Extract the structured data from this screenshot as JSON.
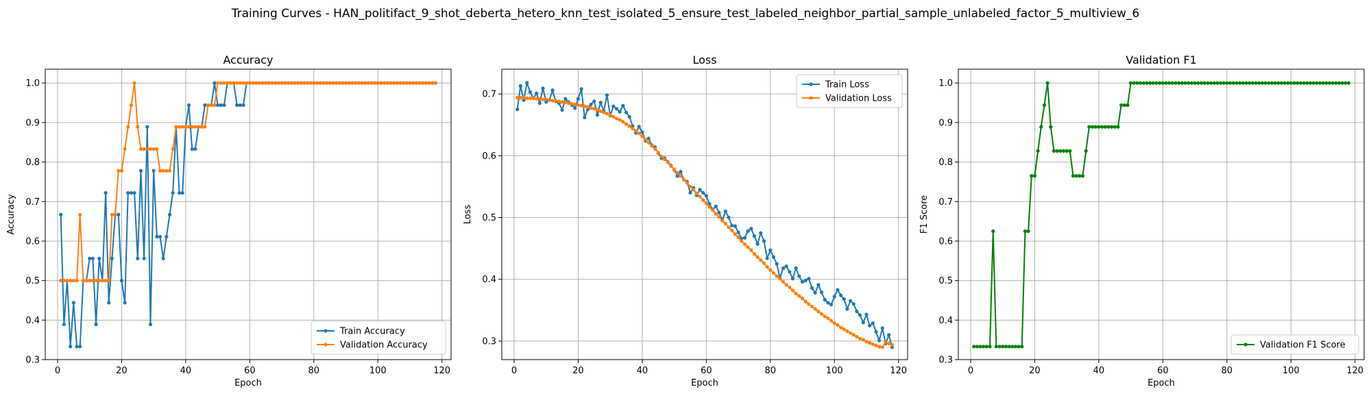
{
  "figure": {
    "suptitle": "Training Curves - HAN_politifact_9_shot_deberta_hetero_knn_test_isolated_5_ensure_test_labeled_neighbor_partial_sample_unlabeled_factor_5_multiview_6"
  },
  "colors": {
    "blue": "#1f77b4",
    "orange": "#ff7f0e",
    "green": "#008000",
    "grid": "#b0b0b0"
  },
  "chart_data": [
    {
      "type": "line",
      "title": "Accuracy",
      "xlabel": "Epoch",
      "ylabel": "Accuracy",
      "xlim": [
        -3.85,
        122.85
      ],
      "ylim": [
        0.3,
        1.035
      ],
      "xticks": [
        0,
        20,
        40,
        60,
        80,
        100,
        120
      ],
      "yticks": [
        0.3,
        0.4,
        0.5,
        0.6,
        0.7,
        0.8,
        0.9,
        1.0
      ],
      "ytick_labels": [
        "0.3",
        "0.4",
        "0.5",
        "0.6",
        "0.7",
        "0.8",
        "0.9",
        "1.0"
      ],
      "grid": true,
      "legend_position": "lower-right",
      "series": [
        {
          "name": "Train Accuracy",
          "color": "#1f77b4",
          "x_start": 1,
          "values": [
            0.667,
            0.389,
            0.5,
            0.333,
            0.444,
            0.333,
            0.333,
            0.5,
            0.5,
            0.556,
            0.556,
            0.389,
            0.556,
            0.5,
            0.722,
            0.444,
            0.556,
            0.667,
            0.667,
            0.5,
            0.444,
            0.722,
            0.722,
            0.722,
            0.556,
            0.778,
            0.556,
            0.889,
            0.389,
            0.778,
            0.611,
            0.611,
            0.556,
            0.611,
            0.667,
            0.722,
            0.889,
            0.722,
            0.722,
            0.889,
            0.944,
            0.833,
            0.833,
            0.889,
            0.889,
            0.944,
            0.944,
            0.944,
            1.0,
            0.944,
            0.944,
            0.944,
            1.0,
            1.0,
            1.0,
            0.944,
            0.944,
            0.944,
            1.0,
            1.0,
            1.0,
            1.0,
            1.0,
            1.0,
            1.0,
            1.0,
            1.0,
            1.0,
            1.0,
            1.0,
            1.0,
            1.0,
            1.0,
            1.0,
            1.0,
            1.0,
            1.0,
            1.0,
            1.0,
            1.0,
            1.0,
            1.0,
            1.0,
            1.0,
            1.0,
            1.0,
            1.0,
            1.0,
            1.0,
            1.0,
            1.0,
            1.0,
            1.0,
            1.0,
            1.0,
            1.0,
            1.0,
            1.0,
            1.0,
            1.0,
            1.0,
            1.0,
            1.0,
            1.0,
            1.0,
            1.0,
            1.0,
            1.0,
            1.0,
            1.0,
            1.0,
            1.0,
            1.0,
            1.0,
            1.0,
            1.0,
            1.0,
            1.0
          ]
        },
        {
          "name": "Validation Accuracy",
          "color": "#ff7f0e",
          "x_start": 1,
          "values": [
            0.5,
            0.5,
            0.5,
            0.5,
            0.5,
            0.5,
            0.667,
            0.5,
            0.5,
            0.5,
            0.5,
            0.5,
            0.5,
            0.5,
            0.5,
            0.5,
            0.667,
            0.667,
            0.778,
            0.778,
            0.833,
            0.889,
            0.944,
            1.0,
            0.889,
            0.833,
            0.833,
            0.833,
            0.833,
            0.833,
            0.833,
            0.778,
            0.778,
            0.778,
            0.778,
            0.833,
            0.889,
            0.889,
            0.889,
            0.889,
            0.889,
            0.889,
            0.889,
            0.889,
            0.889,
            0.889,
            0.944,
            0.944,
            0.944,
            1.0,
            1.0,
            1.0,
            1.0,
            1.0,
            1.0,
            1.0,
            1.0,
            1.0,
            1.0,
            1.0,
            1.0,
            1.0,
            1.0,
            1.0,
            1.0,
            1.0,
            1.0,
            1.0,
            1.0,
            1.0,
            1.0,
            1.0,
            1.0,
            1.0,
            1.0,
            1.0,
            1.0,
            1.0,
            1.0,
            1.0,
            1.0,
            1.0,
            1.0,
            1.0,
            1.0,
            1.0,
            1.0,
            1.0,
            1.0,
            1.0,
            1.0,
            1.0,
            1.0,
            1.0,
            1.0,
            1.0,
            1.0,
            1.0,
            1.0,
            1.0,
            1.0,
            1.0,
            1.0,
            1.0,
            1.0,
            1.0,
            1.0,
            1.0,
            1.0,
            1.0,
            1.0,
            1.0,
            1.0,
            1.0,
            1.0,
            1.0,
            1.0,
            1.0
          ]
        }
      ]
    },
    {
      "type": "line",
      "title": "Loss",
      "xlabel": "Epoch",
      "ylabel": "Loss",
      "xlim": [
        -3.85,
        122.85
      ],
      "ylim": [
        0.27,
        0.74
      ],
      "xticks": [
        0,
        20,
        40,
        60,
        80,
        100,
        120
      ],
      "yticks": [
        0.3,
        0.4,
        0.5,
        0.6,
        0.7
      ],
      "ytick_labels": [
        "0.3",
        "0.4",
        "0.5",
        "0.6",
        "0.7"
      ],
      "grid": true,
      "legend_position": "upper-right",
      "series": [
        {
          "name": "Train Loss",
          "color": "#1f77b4",
          "x_start": 1,
          "values": [
            0.675,
            0.713,
            0.69,
            0.718,
            0.703,
            0.693,
            0.701,
            0.685,
            0.709,
            0.687,
            0.69,
            0.706,
            0.688,
            0.685,
            0.674,
            0.692,
            0.687,
            0.682,
            0.677,
            0.692,
            0.708,
            0.662,
            0.675,
            0.683,
            0.688,
            0.666,
            0.686,
            0.672,
            0.698,
            0.665,
            0.68,
            0.676,
            0.671,
            0.681,
            0.67,
            0.663,
            0.648,
            0.637,
            0.647,
            0.638,
            0.624,
            0.628,
            0.617,
            0.614,
            0.604,
            0.596,
            0.596,
            0.59,
            0.584,
            0.577,
            0.567,
            0.574,
            0.561,
            0.558,
            0.54,
            0.548,
            0.536,
            0.545,
            0.54,
            0.535,
            0.522,
            0.513,
            0.518,
            0.508,
            0.496,
            0.51,
            0.5,
            0.487,
            0.486,
            0.476,
            0.466,
            0.467,
            0.478,
            0.482,
            0.47,
            0.457,
            0.475,
            0.462,
            0.434,
            0.447,
            0.436,
            0.425,
            0.402,
            0.418,
            0.421,
            0.412,
            0.401,
            0.418,
            0.405,
            0.396,
            0.398,
            0.401,
            0.386,
            0.378,
            0.391,
            0.379,
            0.367,
            0.362,
            0.359,
            0.372,
            0.383,
            0.374,
            0.368,
            0.352,
            0.365,
            0.36,
            0.348,
            0.342,
            0.33,
            0.343,
            0.325,
            0.329,
            0.315,
            0.301,
            0.321,
            0.296,
            0.31,
            0.29
          ]
        },
        {
          "name": "Validation Loss",
          "color": "#ff7f0e",
          "x_start": 1,
          "values": [
            0.694,
            0.694,
            0.694,
            0.693,
            0.693,
            0.693,
            0.692,
            0.692,
            0.691,
            0.691,
            0.69,
            0.689,
            0.689,
            0.688,
            0.687,
            0.686,
            0.685,
            0.684,
            0.683,
            0.682,
            0.681,
            0.68,
            0.679,
            0.677,
            0.676,
            0.674,
            0.672,
            0.67,
            0.668,
            0.666,
            0.663,
            0.66,
            0.658,
            0.655,
            0.651,
            0.648,
            0.644,
            0.64,
            0.636,
            0.631,
            0.626,
            0.621,
            0.616,
            0.611,
            0.605,
            0.599,
            0.594,
            0.589,
            0.583,
            0.578,
            0.572,
            0.567,
            0.561,
            0.556,
            0.55,
            0.545,
            0.539,
            0.534,
            0.528,
            0.523,
            0.517,
            0.512,
            0.506,
            0.501,
            0.495,
            0.49,
            0.484,
            0.479,
            0.473,
            0.468,
            0.462,
            0.457,
            0.452,
            0.447,
            0.441,
            0.436,
            0.431,
            0.426,
            0.42,
            0.415,
            0.41,
            0.405,
            0.401,
            0.396,
            0.391,
            0.387,
            0.382,
            0.377,
            0.373,
            0.369,
            0.364,
            0.36,
            0.356,
            0.352,
            0.348,
            0.344,
            0.34,
            0.337,
            0.333,
            0.329,
            0.326,
            0.322,
            0.319,
            0.316,
            0.313,
            0.31,
            0.307,
            0.304,
            0.302,
            0.299,
            0.297,
            0.295,
            0.293,
            0.291,
            0.29,
            0.298,
            0.296,
            0.294
          ]
        }
      ]
    },
    {
      "type": "line",
      "title": "Validation F1",
      "xlabel": "Epoch",
      "ylabel": "F1 Score",
      "xlim": [
        -3.85,
        122.85
      ],
      "ylim": [
        0.3,
        1.035
      ],
      "xticks": [
        0,
        20,
        40,
        60,
        80,
        100,
        120
      ],
      "yticks": [
        0.3,
        0.4,
        0.5,
        0.6,
        0.7,
        0.8,
        0.9,
        1.0
      ],
      "ytick_labels": [
        "0.3",
        "0.4",
        "0.5",
        "0.6",
        "0.7",
        "0.8",
        "0.9",
        "1.0"
      ],
      "grid": true,
      "legend_position": "lower-right",
      "series": [
        {
          "name": "Validation F1 Score",
          "color": "#008000",
          "x_start": 1,
          "values": [
            0.333,
            0.333,
            0.333,
            0.333,
            0.333,
            0.333,
            0.625,
            0.333,
            0.333,
            0.333,
            0.333,
            0.333,
            0.333,
            0.333,
            0.333,
            0.333,
            0.625,
            0.625,
            0.765,
            0.765,
            0.828,
            0.889,
            0.944,
            1.0,
            0.889,
            0.828,
            0.828,
            0.828,
            0.828,
            0.828,
            0.828,
            0.765,
            0.765,
            0.765,
            0.765,
            0.828,
            0.889,
            0.889,
            0.889,
            0.889,
            0.889,
            0.889,
            0.889,
            0.889,
            0.889,
            0.889,
            0.944,
            0.944,
            0.944,
            1.0,
            1.0,
            1.0,
            1.0,
            1.0,
            1.0,
            1.0,
            1.0,
            1.0,
            1.0,
            1.0,
            1.0,
            1.0,
            1.0,
            1.0,
            1.0,
            1.0,
            1.0,
            1.0,
            1.0,
            1.0,
            1.0,
            1.0,
            1.0,
            1.0,
            1.0,
            1.0,
            1.0,
            1.0,
            1.0,
            1.0,
            1.0,
            1.0,
            1.0,
            1.0,
            1.0,
            1.0,
            1.0,
            1.0,
            1.0,
            1.0,
            1.0,
            1.0,
            1.0,
            1.0,
            1.0,
            1.0,
            1.0,
            1.0,
            1.0,
            1.0,
            1.0,
            1.0,
            1.0,
            1.0,
            1.0,
            1.0,
            1.0,
            1.0,
            1.0,
            1.0,
            1.0,
            1.0,
            1.0,
            1.0,
            1.0,
            1.0,
            1.0,
            1.0
          ]
        }
      ]
    }
  ]
}
